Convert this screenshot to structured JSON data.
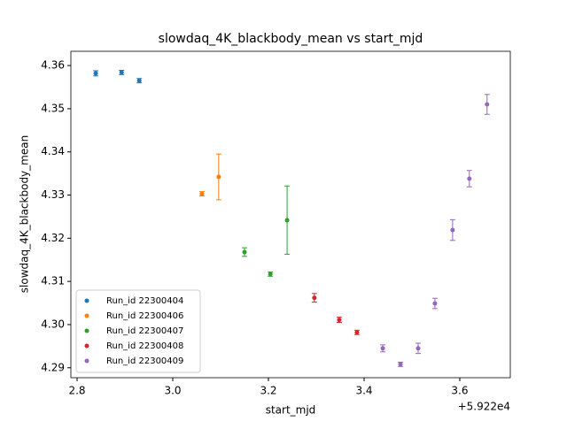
{
  "chart_data": {
    "type": "scatter",
    "title": "slowdaq_4K_blackbody_mean vs start_mjd",
    "x_label": "start_mjd",
    "y_label": "slowdaq_4K_blackbody_mean",
    "x_offset_label": "+5.922e4",
    "xlim": [
      2.787,
      3.7056
    ],
    "ylim": [
      4.2877,
      4.3633
    ],
    "xticks": [
      2.8,
      {
        "value": 3,
        "label": "3.0"
      },
      3.2,
      3.4,
      3.6
    ],
    "yticks": [
      4.29,
      {
        "value": 4.3,
        "label": "4.30"
      },
      4.31,
      4.32,
      4.33,
      4.34,
      4.35,
      4.36
    ],
    "legend_position": "lower left",
    "series": [
      {
        "name": "Run_id 22300404",
        "color": "#1f77b4",
        "x": [
          2.839,
          2.893,
          2.93
        ],
        "values": [
          4.3582,
          4.3584,
          4.3565
        ],
        "errors": [
          0.0006,
          0.0005,
          0.0005
        ]
      },
      {
        "name": "Run_id 22300406",
        "color": "#ff7f0e",
        "x": [
          3.061,
          3.096
        ],
        "values": [
          4.3303,
          4.3342
        ],
        "errors": [
          0.0005,
          0.0053
        ]
      },
      {
        "name": "Run_id 22300407",
        "color": "#2ca02c",
        "x": [
          3.15,
          3.204,
          3.239
        ],
        "values": [
          4.3168,
          4.3117,
          4.3242
        ],
        "errors": [
          0.001,
          0.0005,
          0.0079
        ]
      },
      {
        "name": "Run_id 22300408",
        "color": "#d62728",
        "x": [
          3.296,
          3.348,
          3.385
        ],
        "values": [
          4.3062,
          4.3011,
          4.2982
        ],
        "errors": [
          0.001,
          0.0006,
          0.0005
        ]
      },
      {
        "name": "Run_id 22300409",
        "color": "#9467bd",
        "x": [
          3.439,
          3.476,
          3.513,
          3.548,
          3.585,
          3.62,
          3.657
        ],
        "values": [
          4.2945,
          4.2908,
          4.2945,
          4.3049,
          4.3219,
          4.3338,
          4.351
        ],
        "errors": [
          0.0008,
          0.0005,
          0.0012,
          0.0012,
          0.0024,
          0.0019,
          0.0023
        ]
      }
    ]
  }
}
